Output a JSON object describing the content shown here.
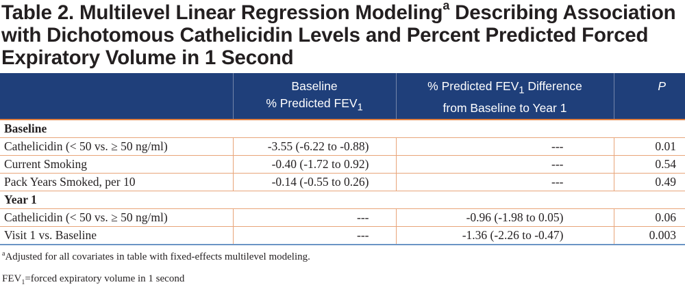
{
  "title": {
    "part1": "Table 2. Multilevel Linear Regression Modeling",
    "sup": "a",
    "part2": " Describing Association with Dichotomous Cathelicidin Levels and Percent Predicted Forced Expiratory Volume in 1 Second"
  },
  "headers": {
    "col1": "",
    "col2_line1": "Baseline",
    "col2_line2_pre": "% Predicted FEV",
    "col2_line2_sub": "1",
    "col3_line1_pre": "% Predicted FEV",
    "col3_line1_sub": "1",
    "col3_line1_post": " Difference",
    "col3_line2": "from Baseline to Year 1",
    "col4": "P"
  },
  "sections": [
    {
      "label": "Baseline",
      "rows": [
        {
          "label": "Cathelicidin (< 50 vs. ≥ 50 ng/ml)",
          "baseline": "-3.55 (-6.22 to -0.88)",
          "difference": "---",
          "p": "0.01"
        },
        {
          "label": "Current Smoking",
          "baseline": "-0.40 (-1.72 to 0.92)",
          "difference": "---",
          "p": "0.54"
        },
        {
          "label": "Pack Years Smoked, per 10",
          "baseline": "-0.14 (-0.55 to 0.26)",
          "difference": "---",
          "p": "0.49"
        }
      ]
    },
    {
      "label": "Year 1",
      "rows": [
        {
          "label": "Cathelicidin (< 50 vs. ≥ 50 ng/ml)",
          "baseline": "---",
          "difference": "-0.96 (-1.98 to 0.05)",
          "p": "0.06"
        },
        {
          "label": "Visit 1 vs. Baseline",
          "baseline": "---",
          "difference": "-1.36 (-2.26 to -0.47)",
          "p": "0.003"
        }
      ]
    }
  ],
  "footnotes": {
    "note_a_marker": "a",
    "note_a_text": "Adjusted for all covariates in table with fixed-effects multilevel modeling.",
    "fev_pre": "FEV",
    "fev_sub": "1",
    "fev_text": "=forced expiratory volume in 1 second"
  },
  "colors": {
    "header_bg": "#1f3f7a",
    "rule_orange": "#e37f3d",
    "rule_blue": "#6a94c5",
    "text": "#231f20"
  }
}
